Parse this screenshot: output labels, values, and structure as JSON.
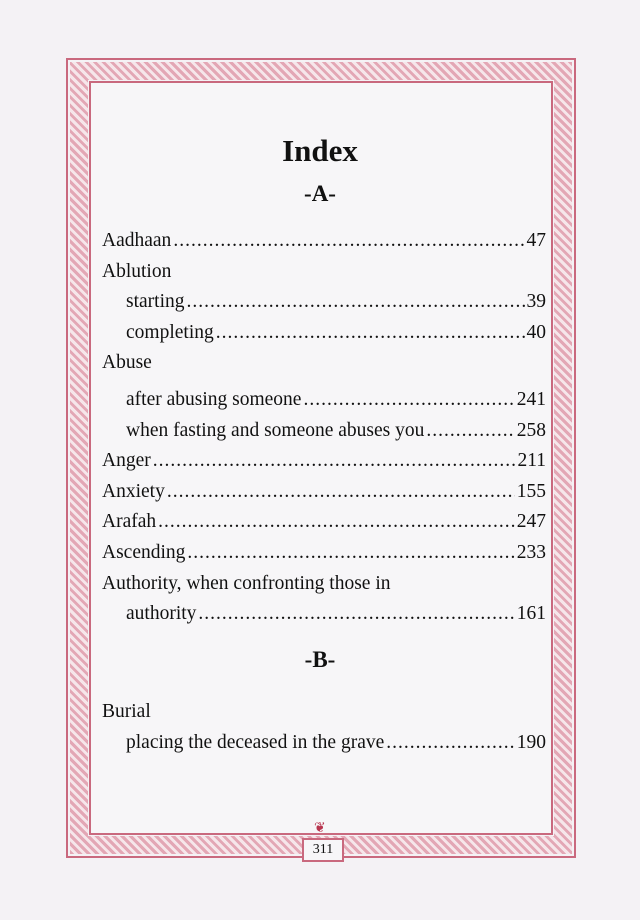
{
  "title": "Index",
  "sections": [
    {
      "letter": "-A-",
      "entries": [
        {
          "term": "Aadhaan",
          "page": "47",
          "sub": false
        },
        {
          "term": "Ablution",
          "page": "",
          "sub": false
        },
        {
          "term": "starting",
          "page": "39",
          "sub": true
        },
        {
          "term": "completing",
          "page": "40",
          "sub": true
        },
        {
          "term": "Abuse",
          "page": "",
          "sub": false
        },
        {
          "term": "after abusing someone",
          "page": "241",
          "sub": true
        },
        {
          "term": "when fasting and someone abuses you",
          "page": "258",
          "sub": true
        },
        {
          "term": "Anger",
          "page": "211",
          "sub": false
        },
        {
          "term": "Anxiety",
          "page": "155",
          "sub": false
        },
        {
          "term": "Arafah",
          "page": "247",
          "sub": false
        },
        {
          "term": "Ascending",
          "page": "233",
          "sub": false
        },
        {
          "term": "Authority, when confronting those in",
          "page": "",
          "sub": false
        },
        {
          "term": "authority",
          "page": "161",
          "sub": true
        }
      ]
    },
    {
      "letter": "-B-",
      "entries": [
        {
          "term": "Burial",
          "page": "",
          "sub": false
        },
        {
          "term": "placing the deceased in the grave",
          "page": "190",
          "sub": true
        }
      ]
    }
  ],
  "page_number": "311",
  "colors": {
    "border": "#c9697e",
    "ornament": "#b8354f"
  }
}
